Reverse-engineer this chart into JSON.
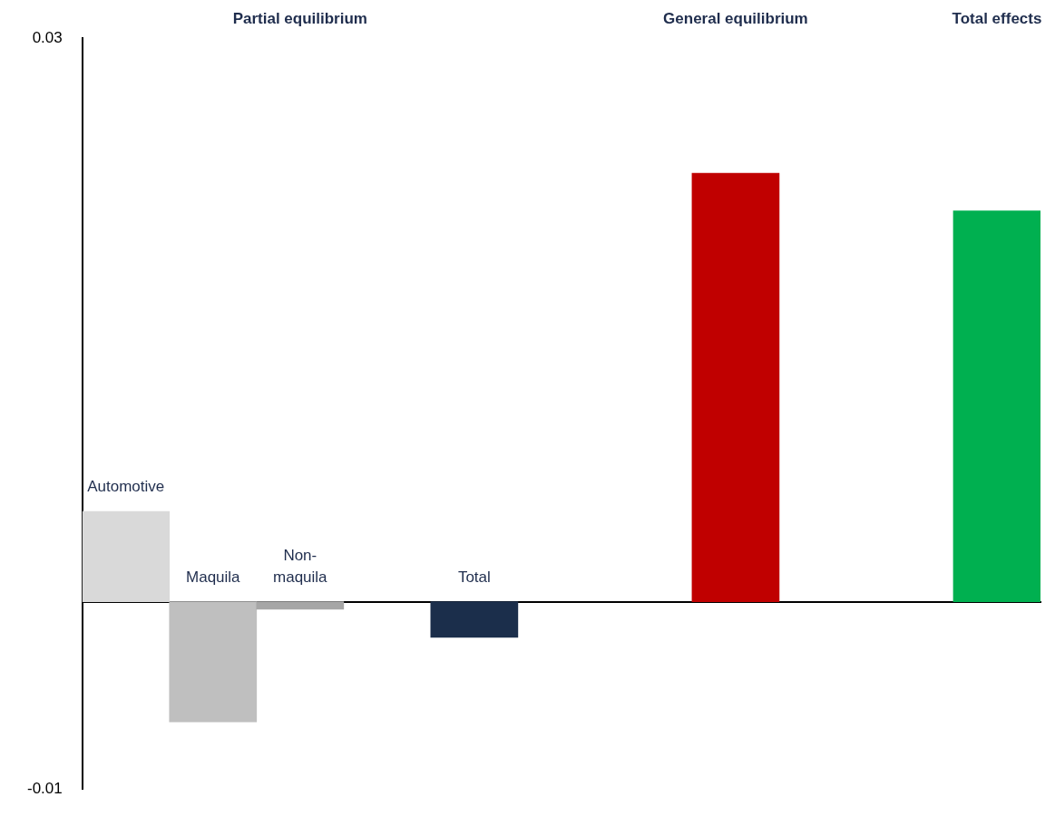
{
  "chart_data": {
    "type": "bar",
    "categories": [
      "Automotive",
      "Maquila",
      "Non-maquila",
      null,
      "Total",
      null,
      null,
      null,
      null,
      null,
      null
    ],
    "values": [
      0.0048,
      -0.0064,
      -0.0004,
      null,
      -0.0019,
      null,
      null,
      0.0228,
      null,
      null,
      0.0208
    ],
    "colors": [
      "#d9d9d9",
      "#bfbfbf",
      "#a6a6a6",
      null,
      "#1b2e4b",
      null,
      null,
      "#c00000",
      null,
      null,
      "#00b050"
    ],
    "ylim": [
      -0.01,
      0.03
    ],
    "yticks": [
      -0.01,
      0.03
    ],
    "grid": false,
    "legend": false,
    "annotations": [
      "Partial equilibrium",
      "General equilibrium",
      "Total effects"
    ]
  }
}
